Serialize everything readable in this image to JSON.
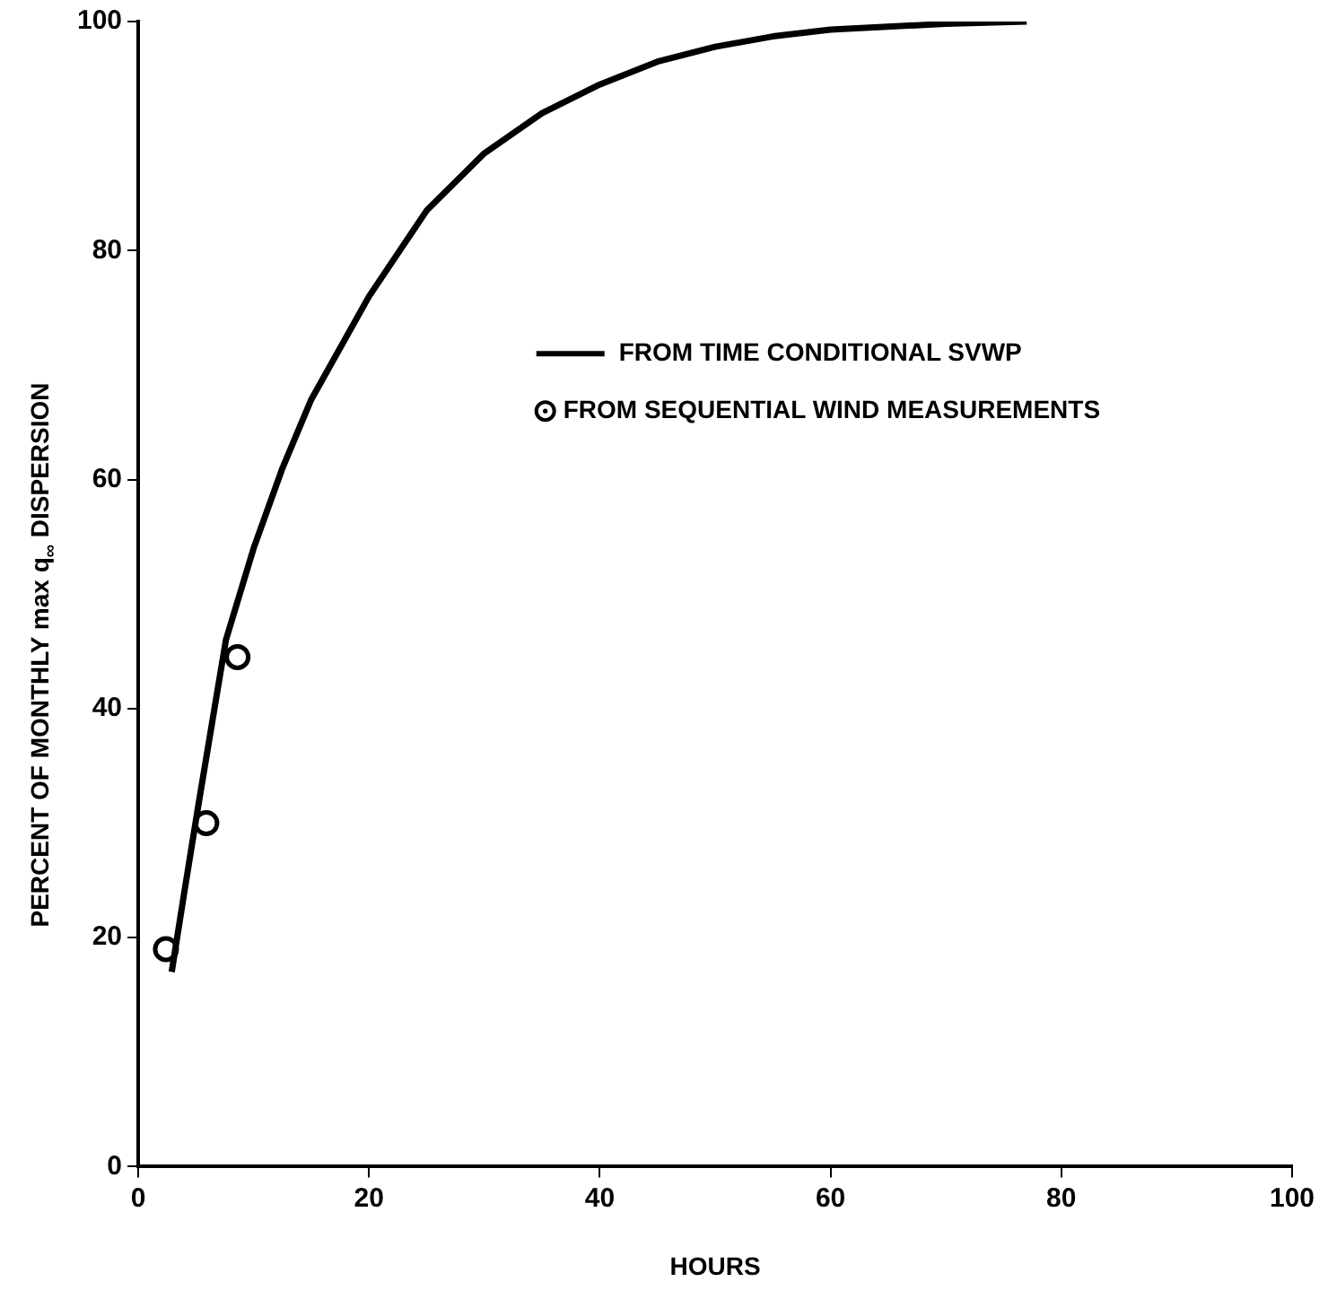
{
  "chart_data": {
    "type": "line",
    "xlabel": "HOURS",
    "ylabel": "PERCENT OF MONTHLY max q$_{∞}$ DISPERSION",
    "xlim": [
      0,
      100
    ],
    "xticks": [
      0,
      20,
      40,
      60,
      80,
      100
    ],
    "ylim": [
      0,
      100
    ],
    "yticks": [
      0,
      20,
      40,
      60,
      80,
      100
    ],
    "grid": false,
    "legend": "right",
    "series": [
      {
        "name": "FROM TIME CONDITIONAL SVWP",
        "type": "line",
        "marker": "none",
        "color": "#000000",
        "x": [
          2.9,
          4,
          5.2,
          7.6,
          10,
          12.5,
          15,
          20,
          25,
          30,
          35,
          40,
          45,
          50,
          55,
          60,
          70,
          77
        ],
        "values": [
          17,
          24,
          31.5,
          46,
          54,
          61,
          67,
          76,
          83.5,
          88.5,
          92,
          94.5,
          96.5,
          97.8,
          98.7,
          99.3,
          99.8,
          100
        ]
      },
      {
        "name": "FROM SEQUENTIAL WIND MEASUREMENTS",
        "type": "scatter",
        "marker": "circle",
        "color": "#000000",
        "x": [
          2.4,
          5.9,
          8.6
        ],
        "values": [
          19,
          30,
          44.5
        ]
      }
    ]
  }
}
